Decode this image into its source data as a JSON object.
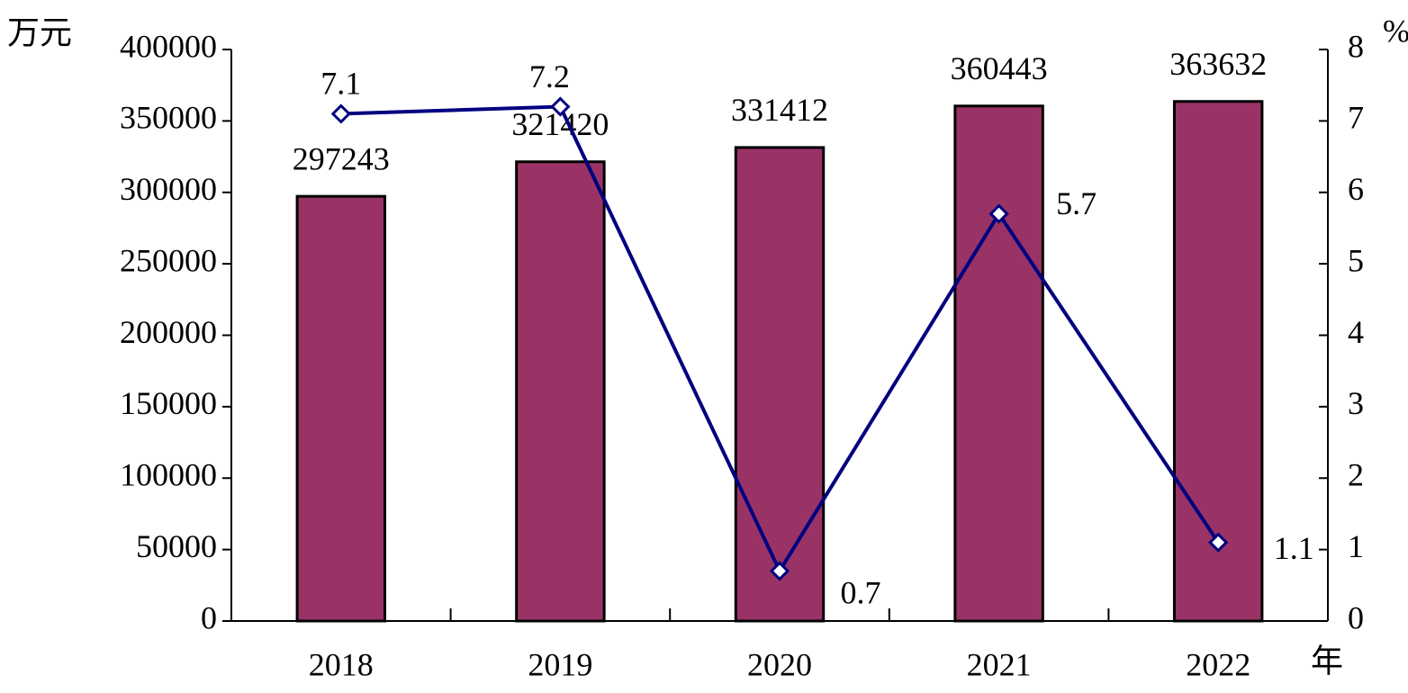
{
  "chart_data": {
    "type": "bar_line",
    "y_label": "万元",
    "y2_label": "%",
    "x_label": "年",
    "categories": [
      "2018",
      "2019",
      "2020",
      "2021",
      "2022"
    ],
    "series": [
      {
        "type": "bar",
        "color": "#993366",
        "values": [
          297243,
          321420,
          331412,
          360443,
          363632
        ]
      },
      {
        "type": "line",
        "axis": "y2",
        "color": "#000080",
        "values": [
          7.1,
          7.2,
          0.7,
          5.7,
          1.1
        ]
      }
    ],
    "ylim": [
      0,
      400000
    ],
    "yticks": [
      0,
      50000,
      100000,
      150000,
      200000,
      250000,
      300000,
      350000,
      400000
    ],
    "y2lim": [
      0,
      8
    ],
    "y2ticks": [
      0,
      1,
      2,
      3,
      4,
      5,
      6,
      7,
      8
    ]
  }
}
